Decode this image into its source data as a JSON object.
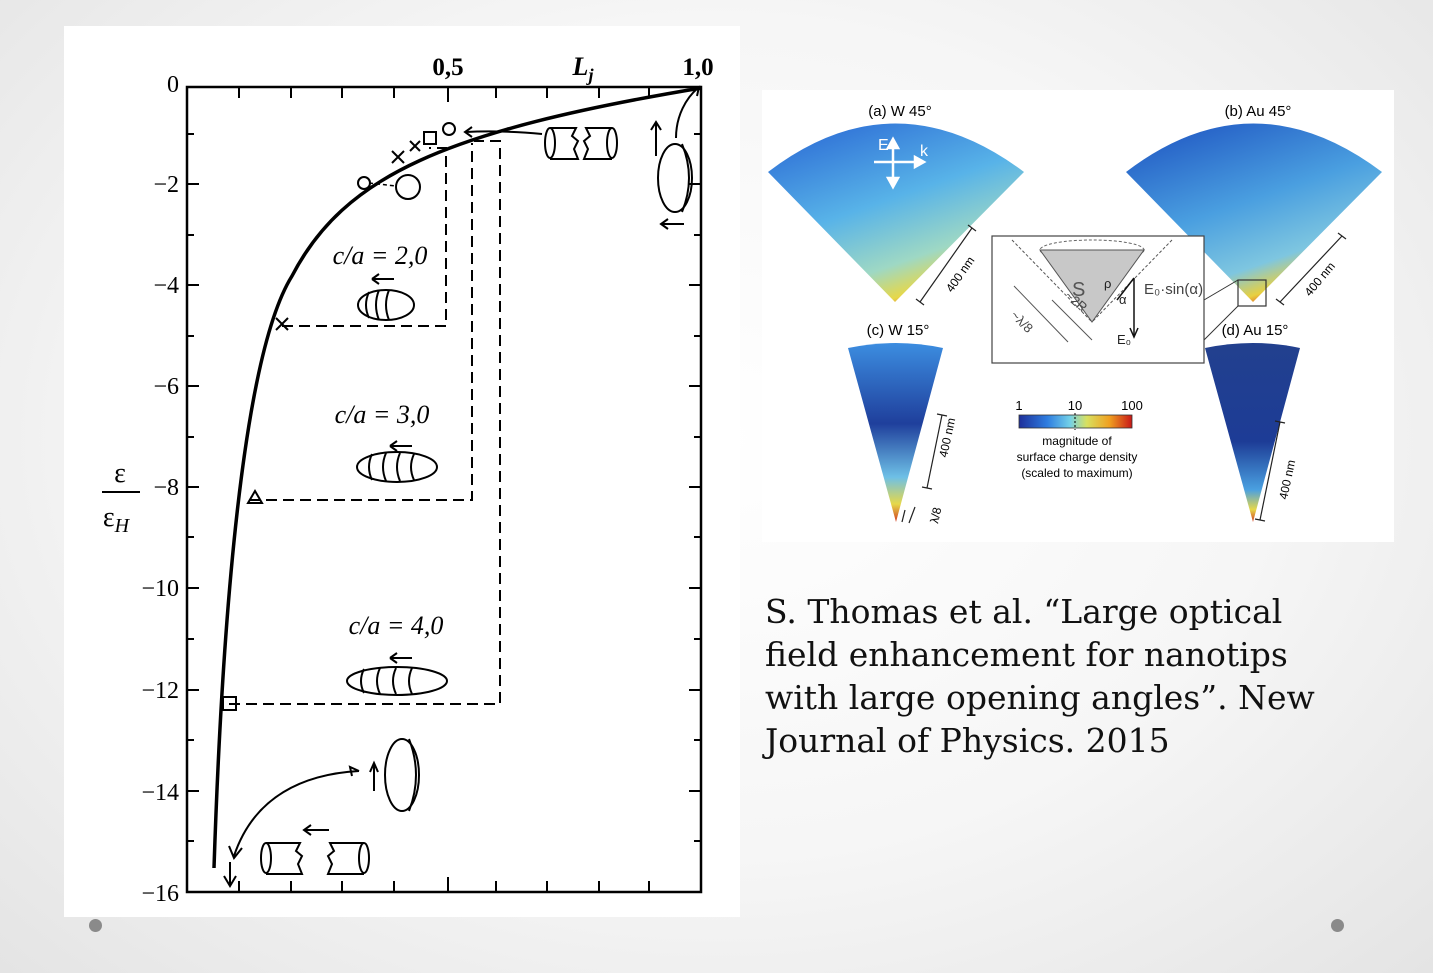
{
  "left_figure": {
    "top_axis": {
      "tick_05": "0,5",
      "label": "L",
      "label_sub": "j",
      "tick_10": "1,0"
    },
    "y_axis": {
      "label_num": "ε",
      "label_den": "ε",
      "label_den_sub": "H",
      "ticks": [
        "0",
        "−2",
        "−4",
        "−6",
        "−8",
        "−10",
        "−12",
        "−14",
        "−16"
      ]
    },
    "shapes": [
      {
        "label": "c/a = 2,0"
      },
      {
        "label": "c/a = 3,0"
      },
      {
        "label": "c/a = 4,0"
      }
    ]
  },
  "right_figure": {
    "panels": {
      "a": "(a) W 45°",
      "b": "(b) Au 45°",
      "c": "(c) W 15°",
      "d": "(d) Au 15°"
    },
    "scale_400": "400 nm",
    "scale_lambda8": "λ/8",
    "vector_e": "E",
    "vector_k": "k",
    "inset": {
      "s": "S",
      "rho": "ρ",
      "alpha": "α",
      "e0sin": "E₀·sin(α)",
      "two_r": "~2R",
      "lambda": "~λ/8",
      "e0": "E₀"
    },
    "colorbar": {
      "min": "1",
      "mid": "10",
      "max": "100",
      "line1": "magnitude of",
      "line2": "surface charge density",
      "line3": "(scaled to maximum)"
    }
  },
  "citation": {
    "line1": "S. Thomas et al. “Large optical",
    "line2": "field enhancement for nanotips",
    "line3": "with large opening angles”. New",
    "line4": "Journal of Physics. 2015"
  }
}
